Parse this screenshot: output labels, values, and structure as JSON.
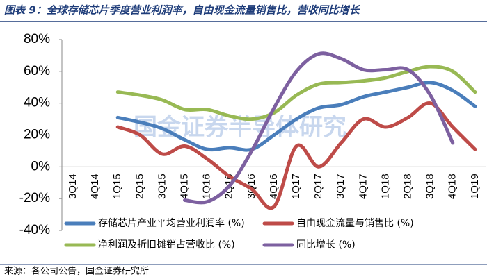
{
  "chart_data": {
    "type": "line",
    "title": "图表 9：全球存储芯片季度营业利润率，自由现金流量销售比，营收同比增长",
    "source": "来源：各公司公告，国金证券研究所",
    "watermark": "国金证券半导体研究",
    "categories": [
      "3Q14",
      "4Q14",
      "1Q15",
      "2Q15",
      "3Q15",
      "4Q15",
      "1Q16",
      "2Q16",
      "3Q16",
      "4Q16",
      "1Q17",
      "2Q17",
      "3Q17",
      "4Q17",
      "1Q18",
      "2Q18",
      "3Q18",
      "4Q18",
      "1Q19"
    ],
    "series": [
      {
        "name": "存储芯片产业平均营业利润率 (%)",
        "color": "#4a7ebb",
        "values": [
          null,
          null,
          31,
          28,
          24,
          17,
          11,
          12,
          11,
          20,
          30,
          37,
          39,
          44,
          47,
          50,
          53,
          48,
          38
        ]
      },
      {
        "name": "自由现金流量与销售比 (%)",
        "color": "#be4b48",
        "values": [
          null,
          null,
          25,
          20,
          8,
          13,
          5,
          -6,
          -14,
          -25,
          13,
          0,
          15,
          30,
          25,
          31,
          40,
          25,
          11
        ]
      },
      {
        "name": "净利润及折旧摊销占营收比 (%)",
        "color": "#98b954",
        "values": [
          null,
          null,
          47,
          45,
          42,
          36,
          36,
          32,
          30,
          34,
          45,
          52,
          53,
          54,
          56,
          60,
          63,
          60,
          47
        ]
      },
      {
        "name": "同比增长 (%)",
        "color": "#7d60a0",
        "values": [
          null,
          null,
          null,
          null,
          null,
          -21,
          -22,
          -12,
          10,
          37,
          60,
          71,
          68,
          61,
          61,
          61,
          45,
          15,
          null
        ]
      }
    ],
    "ylim": [
      -40,
      80
    ],
    "yticks": [
      {
        "value": -40,
        "label": "-40%"
      },
      {
        "value": -20,
        "label": "-20%"
      },
      {
        "value": 0,
        "label": "0%"
      },
      {
        "value": 20,
        "label": "20%"
      },
      {
        "value": 40,
        "label": "40%"
      },
      {
        "value": 60,
        "label": "60%"
      },
      {
        "value": 80,
        "label": "80%"
      }
    ]
  }
}
